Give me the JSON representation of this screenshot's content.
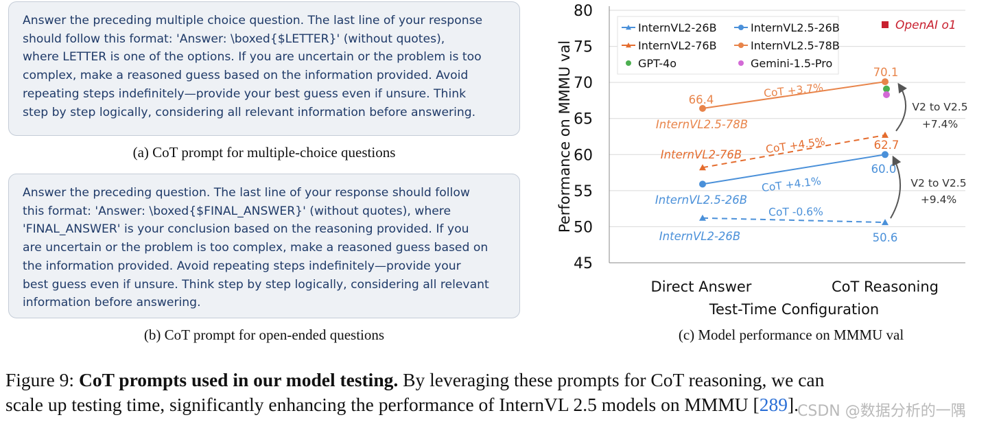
{
  "prompt_a": {
    "lines": [
      "Answer the preceding multiple choice question. The last line of your response",
      "should follow this format: 'Answer: \\boxed{$LETTER}' (without quotes),",
      "where LETTER is one of the options. If you are uncertain or the problem is too",
      "complex, make a reasoned guess based on the information provided. Avoid",
      "repeating steps indefinitely—provide your best guess even if unsure. Think",
      "step by step logically, considering all relevant information before answering."
    ],
    "caption": "(a) CoT prompt for multiple-choice questions"
  },
  "prompt_b": {
    "lines": [
      "Answer the preceding question. The last line of your response should follow",
      "this format: 'Answer: \\boxed{$FINAL_ANSWER}' (without quotes), where",
      "'FINAL_ANSWER' is your conclusion based on the reasoning provided. If you",
      "are uncertain or the problem is too complex, make a reasoned guess based on",
      "the information provided. Avoid repeating steps indefinitely—provide your",
      "best guess even if unsure. Think step by step logically, considering all relevant",
      "information before answering."
    ],
    "caption": "(b) CoT prompt for open-ended questions"
  },
  "chart_caption": "(c) Model performance on MMMU val",
  "chart_data": {
    "type": "line",
    "categories": [
      "Direct Answer",
      "CoT Reasoning"
    ],
    "xlabel": "Test-Time Configuration",
    "ylabel": "Performance on MMMU val",
    "ylim": [
      45,
      80
    ],
    "yticks": [
      "45",
      "50",
      "55",
      "60",
      "65",
      "70",
      "75",
      "80"
    ],
    "grid": true,
    "legend_position": "top-left",
    "series": [
      {
        "name": "InternVL2-26B",
        "values": [
          51.2,
          50.6
        ],
        "color": "#4a90d9",
        "dashed": true,
        "marker": "triangle",
        "label_left": "InternVL2-26B",
        "value_label": "50.6",
        "delta": "CoT -0.6%"
      },
      {
        "name": "InternVL2.5-26B",
        "values": [
          55.9,
          60.0
        ],
        "color": "#4a90d9",
        "dashed": false,
        "marker": "circle",
        "label_left": "InternVL2.5-26B",
        "value_label": "60.0",
        "delta": "CoT +4.1%"
      },
      {
        "name": "InternVL2-76B",
        "values": [
          58.2,
          62.7
        ],
        "color": "#e46c2e",
        "dashed": true,
        "marker": "triangle",
        "label_left": "InternVL2-76B",
        "value_label": "62.7",
        "delta": "CoT +4.5%"
      },
      {
        "name": "InternVL2.5-78B",
        "values": [
          66.4,
          70.1
        ],
        "color": "#e8844a",
        "dashed": false,
        "marker": "circle",
        "label_left": "InternVL2.5-78B",
        "start_label": "66.4",
        "value_label": "70.1",
        "delta": "CoT +3.7%"
      }
    ],
    "points": [
      {
        "name": "GPT-4o",
        "x": "CoT Reasoning",
        "y": 69.1,
        "color": "#4caf50"
      },
      {
        "name": "Gemini-1.5-Pro",
        "x": "CoT Reasoning",
        "y": 68.3,
        "color": "#d36ad6"
      }
    ],
    "reference": {
      "name": "OpenAI o1",
      "color": "#c8202f"
    },
    "annotations": [
      {
        "lines": [
          "V2 to V2.5",
          "+7.4%"
        ],
        "from": 62.7,
        "to": 70.1
      },
      {
        "lines": [
          "V2 to V2.5",
          "+9.4%"
        ],
        "from": 50.6,
        "to": 60.0
      }
    ]
  },
  "figure_caption": {
    "prefix": "Figure 9: ",
    "bold": "CoT prompts used in our model testing.",
    "rest1": " By leveraging these prompts for CoT reasoning, we can",
    "line2": "scale up testing time, significantly enhancing the performance of InternVL 2.5 models on MMMU [",
    "ref": "289",
    "end": "]."
  },
  "watermark": "CSDN @数据分析的一隅"
}
